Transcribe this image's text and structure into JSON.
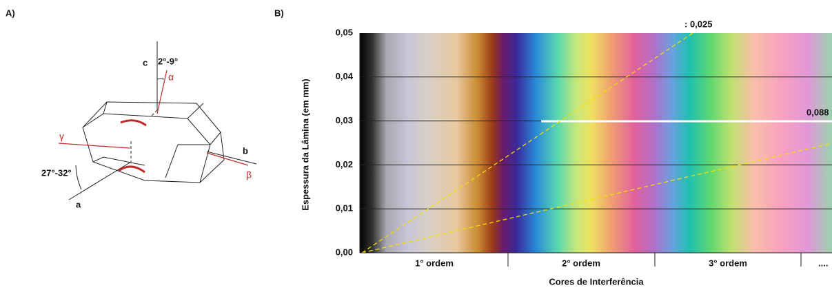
{
  "panel_a": {
    "label": "A)",
    "axis_c": "c",
    "angle_c": "2°-9°",
    "alpha": "α",
    "gamma": "γ",
    "axis_b": "b",
    "beta": "β",
    "angle_a": "27°-32°",
    "axis_a": "a"
  },
  "panel_b": {
    "label": "B)",
    "y_title": "Espessura da Lâmina (em mm)",
    "x_title": "Cores de Interferência",
    "yticks": [
      "0,05",
      "0,04",
      "0,03",
      "0,02",
      "0,01",
      "0,00"
    ],
    "orders": [
      "1° ordem",
      "2° ordem",
      "3° ordem",
      "...."
    ],
    "line_labels": [
      ": 0,025",
      "0,088"
    ]
  }
}
